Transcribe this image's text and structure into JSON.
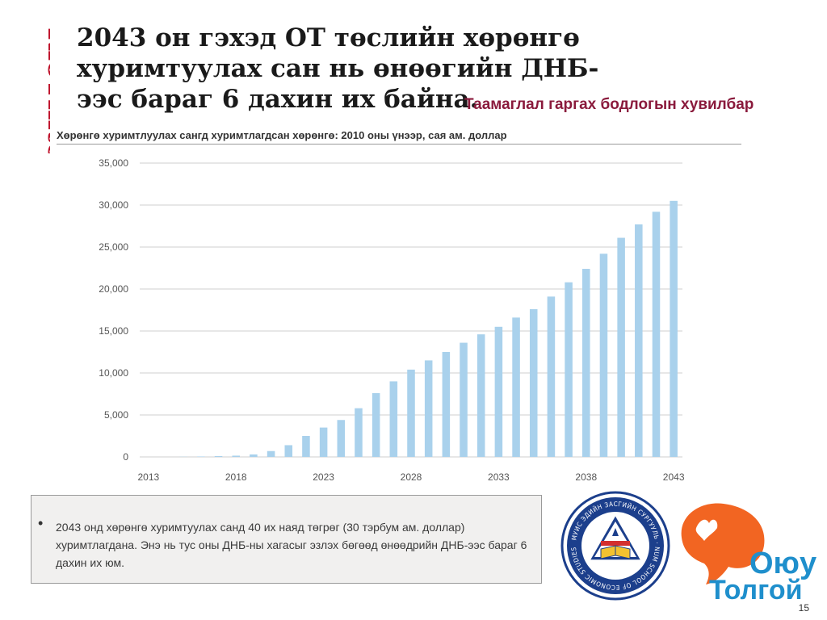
{
  "slide": {
    "brand": "RioTinto",
    "title": "2043 он гэхэд ОТ төслийн хөрөнгө хуримтуулах сан нь өнөөгийн ДНБ-ээс бараг 6 дахин их байна.",
    "subtitle": "Таамаглал гаргах бодлогын хувилбар",
    "chart_caption": "Хөрөнгө хуримтлуулах сангд хуримтлагдсан хөрөнгө: 2010 оны үнээр,  сая ам. доллар",
    "bullet_text": "2043 онд хөрөнгө хуримтуулах санд 40 их наяд төгрөг (30 тэрбум ам. доллар) хуримтлагдана. Энэ нь тус оны ДНБ-ны хагасыг эзлэх бөгөөд өнөөдрийн ДНБ-ээс бараг 6 дахин их юм.",
    "seal_text": "МУИС ЭДИЙН ЗАСГИЙН СУРГУУЛЬ · NUM SCHOOL OF ECONOMIC STUDIES",
    "logo_line1": "Оюу",
    "logo_line2": "Толгой",
    "page_number": "15"
  },
  "colors": {
    "brand_red": "#c0172f",
    "subtitle": "#8a1a3c",
    "bar": "#a9d1ec",
    "logo_orange": "#f26522",
    "logo_blue": "#1f8fcc"
  },
  "chart_data": {
    "type": "bar",
    "title": "Хөрөнгө хуримтлуулах сангд хуримтлагдсан хөрөнгө: 2010 оны үнээр,  сая ам. доллар",
    "xlabel": "",
    "ylabel": "",
    "ylim": [
      0,
      35000
    ],
    "yticks": [
      "0",
      "5,000",
      "10,000",
      "15,000",
      "20,000",
      "25,000",
      "30,000",
      "35,000"
    ],
    "xtick_labels": [
      "2013",
      "2018",
      "2023",
      "2028",
      "2033",
      "2038",
      "2043"
    ],
    "grid": true,
    "categories": [
      "2013",
      "2014",
      "2015",
      "2016",
      "2017",
      "2018",
      "2019",
      "2020",
      "2021",
      "2022",
      "2023",
      "2024",
      "2025",
      "2026",
      "2027",
      "2028",
      "2029",
      "2030",
      "2031",
      "2032",
      "2033",
      "2034",
      "2035",
      "2036",
      "2037",
      "2038",
      "2039",
      "2040",
      "2041",
      "2042",
      "2043"
    ],
    "values": [
      0,
      0,
      20,
      50,
      100,
      150,
      300,
      700,
      1400,
      2500,
      3500,
      4400,
      5800,
      7600,
      9000,
      10400,
      11500,
      12500,
      13600,
      14600,
      15500,
      16600,
      17600,
      19100,
      20800,
      22400,
      24200,
      26100,
      27700,
      29200,
      30500
    ]
  }
}
